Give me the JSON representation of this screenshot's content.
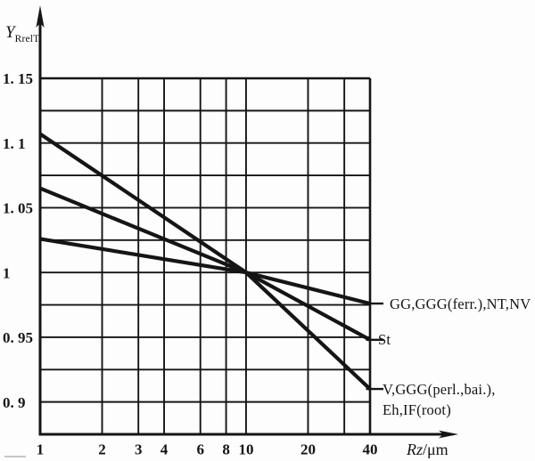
{
  "figure": {
    "background": "#fdfdfd",
    "ink": "#151515"
  },
  "axis_labels": {
    "y_base": "Y",
    "y_sub": "RrelT",
    "x_italic": "Rz",
    "x_rest": "/μm"
  },
  "chart_data": {
    "type": "line",
    "title": "",
    "xlabel": "Rz/μm",
    "ylabel": "Y_RrelT",
    "x_scale": "log",
    "xlim": [
      1,
      40
    ],
    "ylim": [
      0.875,
      1.15
    ],
    "grid": true,
    "legend_position": "right-annotations",
    "x_ticks": [
      {
        "value": 1,
        "label": "1"
      },
      {
        "value": 2,
        "label": "2"
      },
      {
        "value": 3,
        "label": "3"
      },
      {
        "value": 4,
        "label": "4"
      },
      {
        "value": 6,
        "label": "6"
      },
      {
        "value": 8,
        "label": "8"
      },
      {
        "value": 10,
        "label": "10"
      },
      {
        "value": 20,
        "label": "20"
      },
      {
        "value": 30,
        "label": ""
      },
      {
        "value": 40,
        "label": "40"
      }
    ],
    "y_ticks": [
      {
        "value": 1.15,
        "label": "1. 15"
      },
      {
        "value": 1.125,
        "label": ""
      },
      {
        "value": 1.1,
        "label": "1. 1"
      },
      {
        "value": 1.075,
        "label": ""
      },
      {
        "value": 1.05,
        "label": "1. 05"
      },
      {
        "value": 1.025,
        "label": ""
      },
      {
        "value": 1.0,
        "label": "1"
      },
      {
        "value": 0.975,
        "label": ""
      },
      {
        "value": 0.95,
        "label": "0. 95"
      },
      {
        "value": 0.925,
        "label": ""
      },
      {
        "value": 0.9,
        "label": "0. 9"
      },
      {
        "value": 0.875,
        "label": ""
      }
    ],
    "series": [
      {
        "name": "GG,GGG(ferr.),NT,NV",
        "points": [
          [
            1,
            1.026
          ],
          [
            10,
            1.0
          ],
          [
            40,
            0.976
          ]
        ]
      },
      {
        "name": "St",
        "points": [
          [
            1,
            1.065
          ],
          [
            10,
            1.0
          ],
          [
            40,
            0.948
          ]
        ]
      },
      {
        "name": "V,GGG(perl.,bai.),Eh,IF(root)",
        "points": [
          [
            1,
            1.107
          ],
          [
            10,
            1.0
          ],
          [
            40,
            0.91
          ]
        ]
      }
    ],
    "annotations": [
      {
        "lines": [
          "GG,GGG(ferr.),NT,NV"
        ]
      },
      {
        "lines": [
          "St"
        ]
      },
      {
        "lines": [
          "V,GGG(perl.,bai.),",
          "Eh,IF(root)"
        ]
      }
    ]
  }
}
